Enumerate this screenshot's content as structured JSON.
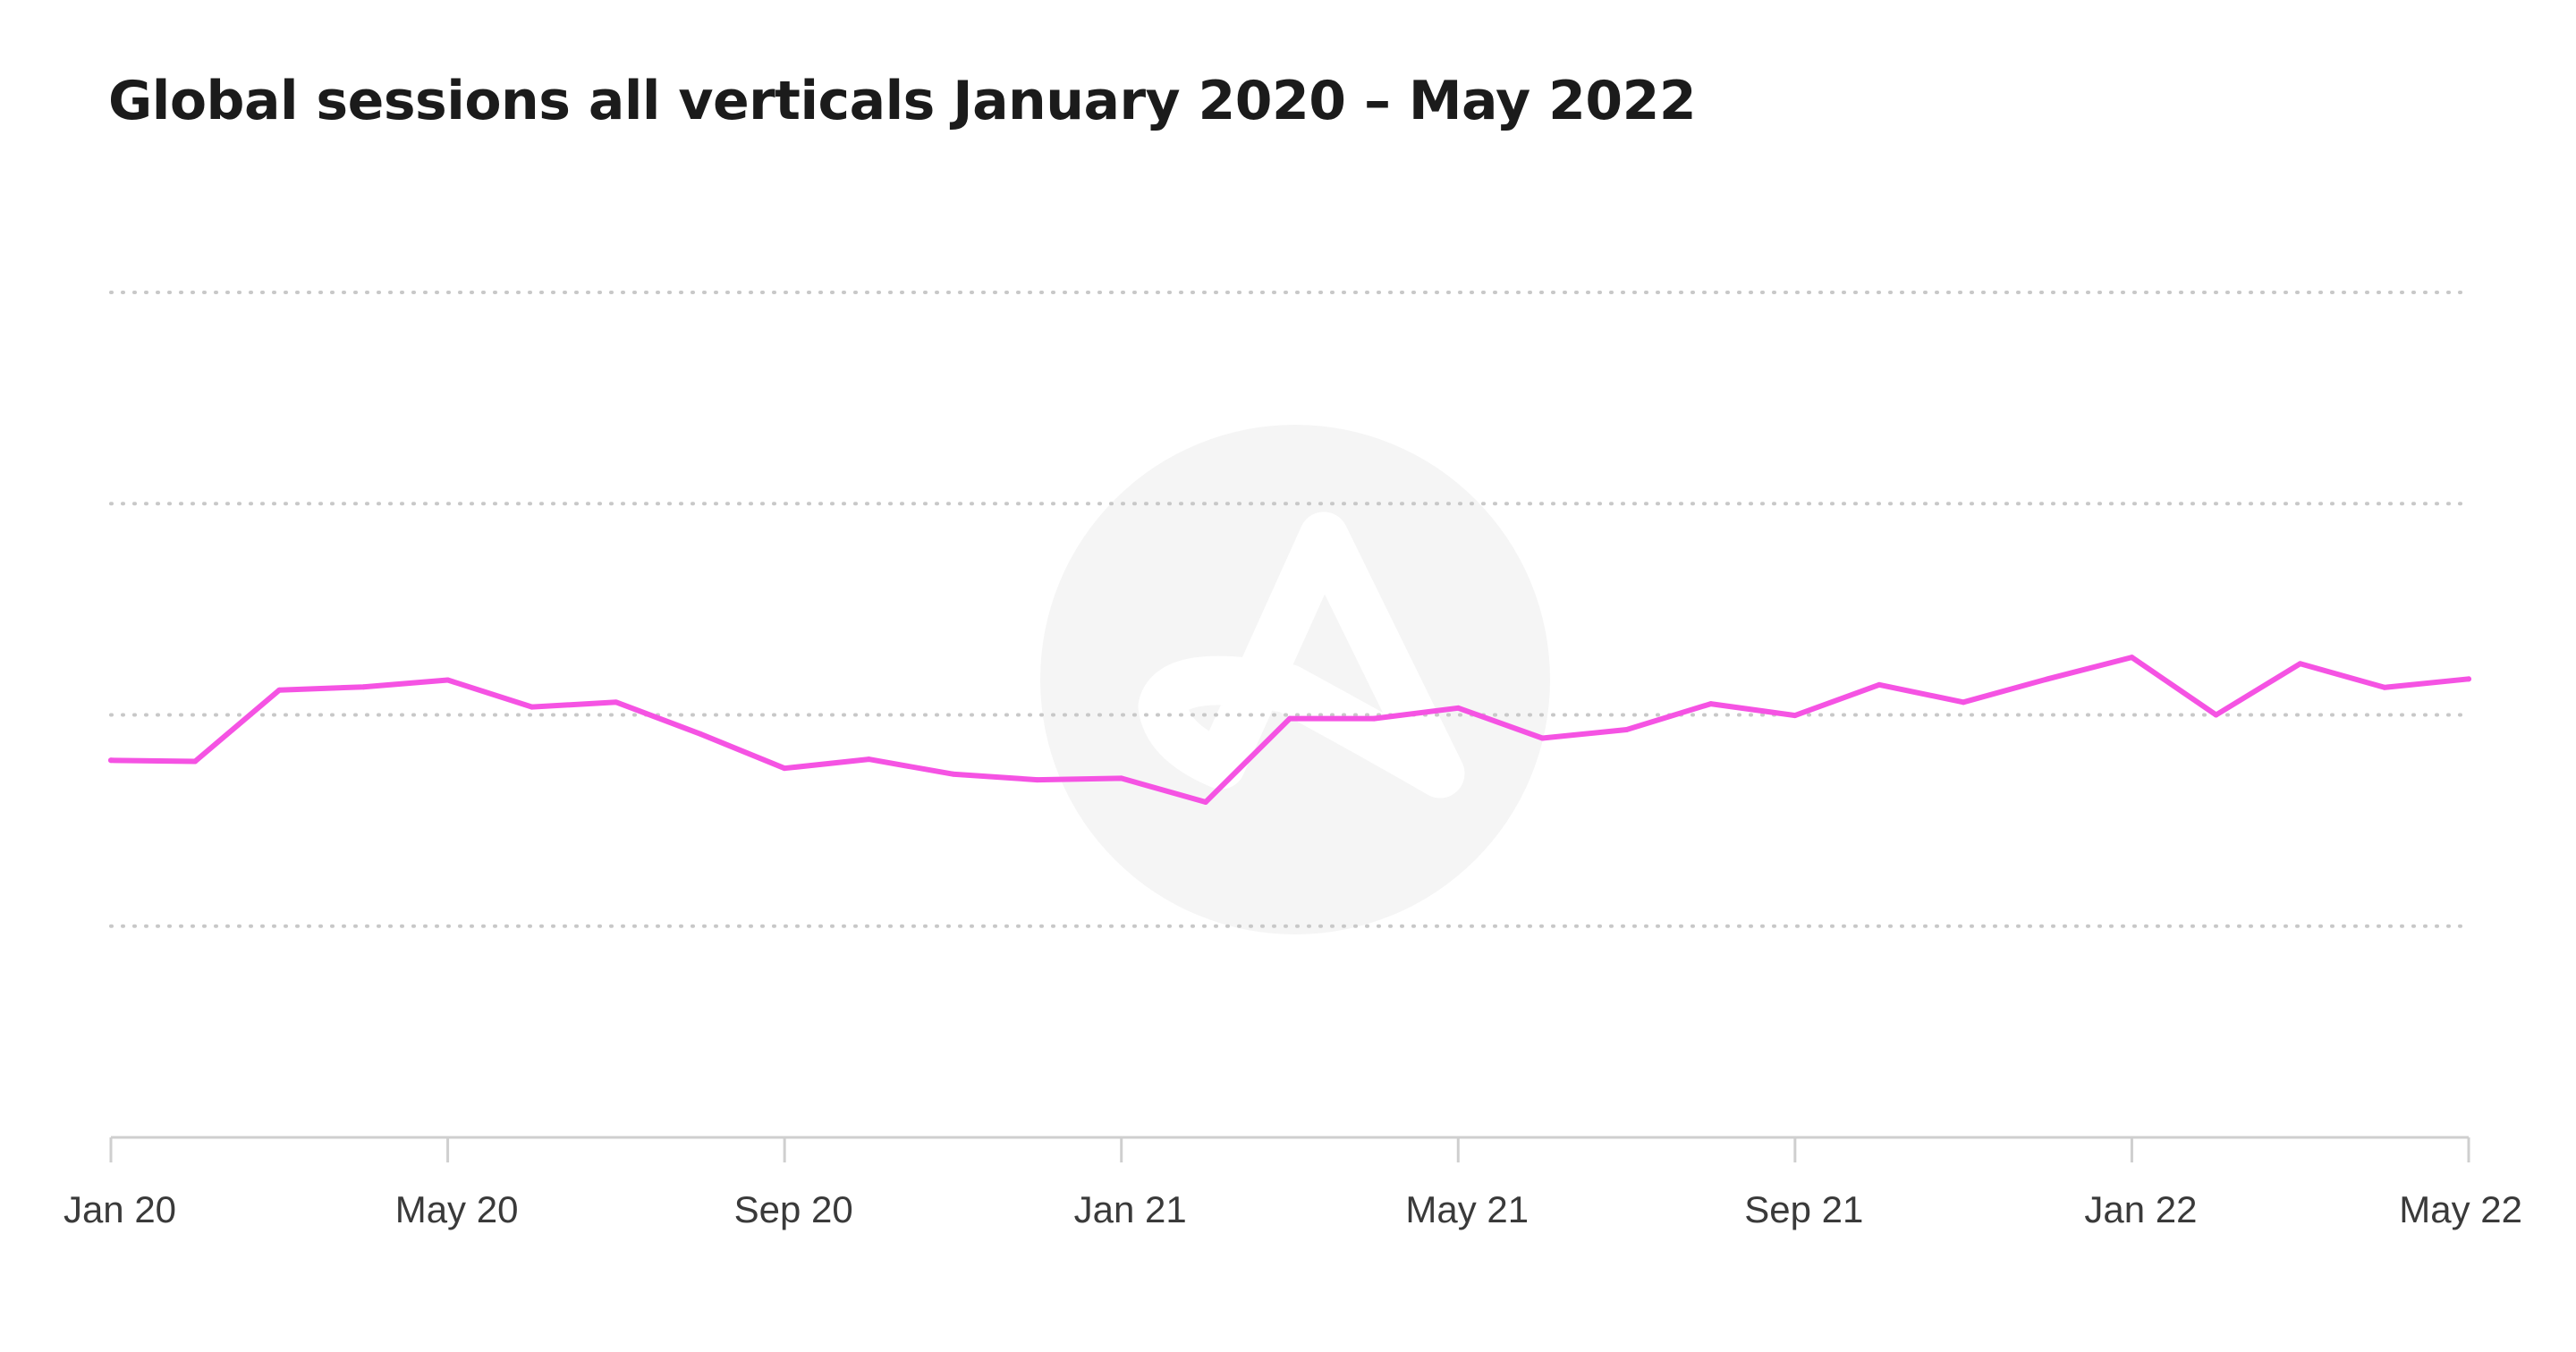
{
  "chart_data": {
    "type": "line",
    "title": "Global sessions all verticals January 2020 – May 2022",
    "xlabel": "",
    "ylabel": "",
    "x_tick_labels": [
      "Jan 20",
      "May 20",
      "Sep 20",
      "Jan 21",
      "May 21",
      "Sep 21",
      "Jan 22",
      "May 22"
    ],
    "x": [
      "Jan 20",
      "Feb 20",
      "Mar 20",
      "Apr 20",
      "May 20",
      "Jun 20",
      "Jul 20",
      "Aug 20",
      "Sep 20",
      "Oct 20",
      "Nov 20",
      "Dec 20",
      "Jan 21",
      "Feb 21",
      "Mar 21",
      "Apr 21",
      "May 21",
      "Jun 21",
      "Jul 21",
      "Aug 21",
      "Sep 21",
      "Oct 21",
      "Nov 21",
      "Dec 21",
      "Jan 22",
      "Feb 22",
      "Mar 22",
      "Apr 22",
      "May 22"
    ],
    "series": [
      {
        "color": "#f553e3",
        "values": [
          0.714,
          0.712,
          0.847,
          0.853,
          0.866,
          0.815,
          0.824,
          0.764,
          0.699,
          0.716,
          0.688,
          0.677,
          0.68,
          0.635,
          0.793,
          0.793,
          0.813,
          0.756,
          0.772,
          0.821,
          0.799,
          0.857,
          0.824,
          0.868,
          0.909,
          0.8,
          0.897,
          0.852,
          0.868
        ]
      }
    ],
    "ylim": [
      0,
      1.6
    ],
    "y_gridlines": [
      0.4,
      0.8,
      1.2,
      1.6
    ],
    "grid": "horizontal dotted",
    "legend": "none"
  },
  "colors": {
    "line": "#f553e3",
    "grid": "#c8c8c8",
    "axis": "#cfcfcf",
    "watermark": "#f5f5f5"
  },
  "watermark": {
    "icon": "brand-logo-icon"
  }
}
